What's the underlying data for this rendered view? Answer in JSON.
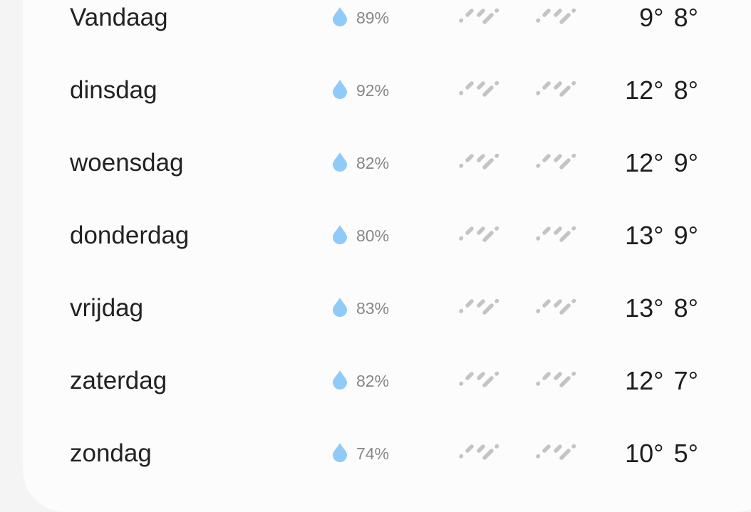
{
  "colors": {
    "drop": "#8fcaf9",
    "rain_icon": "#c4c4c4"
  },
  "icons": {
    "precip": "water-drop-icon",
    "day": "rain-icon",
    "night": "rain-icon"
  },
  "forecast": [
    {
      "day": "Vandaag",
      "precip": "89%",
      "high": "9°",
      "low": "8°"
    },
    {
      "day": "dinsdag",
      "precip": "92%",
      "high": "12°",
      "low": "8°"
    },
    {
      "day": "woensdag",
      "precip": "82%",
      "high": "12°",
      "low": "9°"
    },
    {
      "day": "donderdag",
      "precip": "80%",
      "high": "13°",
      "low": "9°"
    },
    {
      "day": "vrijdag",
      "precip": "83%",
      "high": "13°",
      "low": "8°"
    },
    {
      "day": "zaterdag",
      "precip": "82%",
      "high": "12°",
      "low": "7°"
    },
    {
      "day": "zondag",
      "precip": "74%",
      "high": "10°",
      "low": "5°"
    }
  ]
}
